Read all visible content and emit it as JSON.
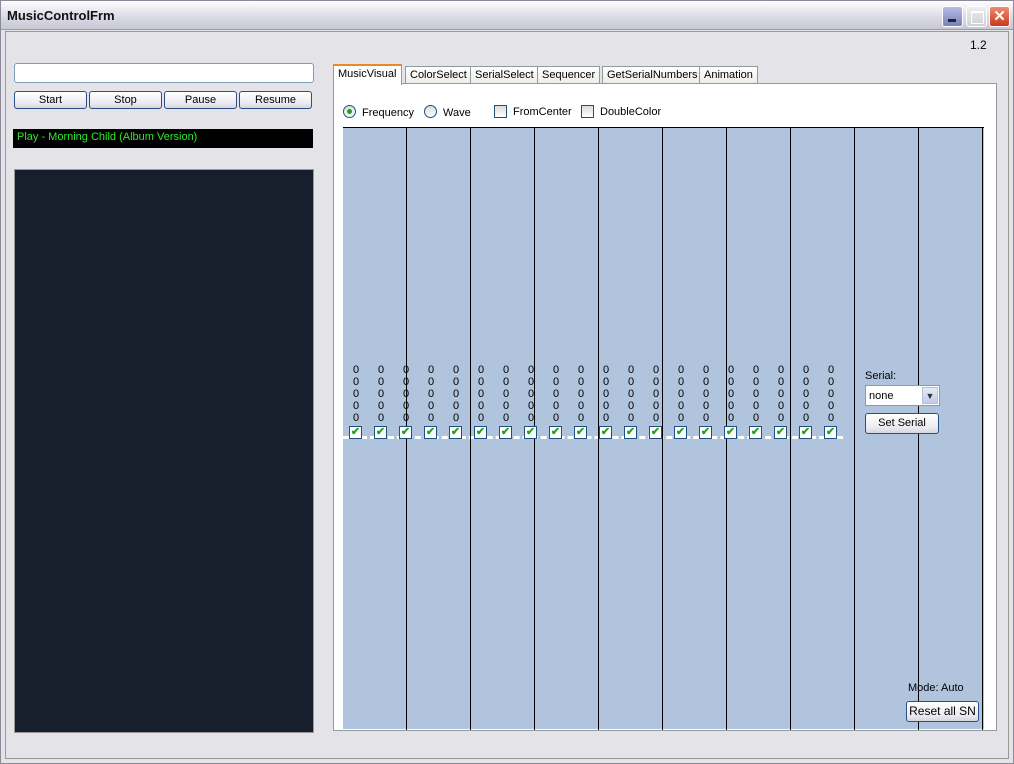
{
  "window": {
    "title": "MusicControlFrm",
    "version": "1.2"
  },
  "controls": {
    "file_input": "",
    "start": "Start",
    "stop": "Stop",
    "pause": "Pause",
    "resume": "Resume",
    "now_playing": "Play - Morning Child (Album Version)"
  },
  "tabs": [
    "MusicVisual",
    "ColorSelect",
    "SerialSelect",
    "Sequencer",
    "GetSerialNumbers",
    "Animation"
  ],
  "active_tab": "MusicVisual",
  "options": {
    "frequency": "Frequency",
    "wave": "Wave",
    "from_center": "FromCenter",
    "double_color": "DoubleColor",
    "selected_mode": "Frequency",
    "from_center_checked": false,
    "double_color_checked": false
  },
  "channels": [
    {
      "values": [
        0,
        0,
        0,
        0,
        0
      ],
      "checked": true
    },
    {
      "values": [
        0,
        0,
        0,
        0,
        0
      ],
      "checked": true
    },
    {
      "values": [
        0,
        0,
        0,
        0,
        0
      ],
      "checked": true
    },
    {
      "values": [
        0,
        0,
        0,
        0,
        0
      ],
      "checked": true
    },
    {
      "values": [
        0,
        0,
        0,
        0,
        0
      ],
      "checked": true
    },
    {
      "values": [
        0,
        0,
        0,
        0,
        0
      ],
      "checked": true
    },
    {
      "values": [
        0,
        0,
        0,
        0,
        0
      ],
      "checked": true
    },
    {
      "values": [
        0,
        0,
        0,
        0,
        0
      ],
      "checked": true
    },
    {
      "values": [
        0,
        0,
        0,
        0,
        0
      ],
      "checked": true
    },
    {
      "values": [
        0,
        0,
        0,
        0,
        0
      ],
      "checked": true
    },
    {
      "values": [
        0,
        0,
        0,
        0,
        0
      ],
      "checked": true
    },
    {
      "values": [
        0,
        0,
        0,
        0,
        0
      ],
      "checked": true
    },
    {
      "values": [
        0,
        0,
        0,
        0,
        0
      ],
      "checked": true
    },
    {
      "values": [
        0,
        0,
        0,
        0,
        0
      ],
      "checked": true
    },
    {
      "values": [
        0,
        0,
        0,
        0,
        0
      ],
      "checked": true
    },
    {
      "values": [
        0,
        0,
        0,
        0,
        0
      ],
      "checked": true
    },
    {
      "values": [
        0,
        0,
        0,
        0,
        0
      ],
      "checked": true
    },
    {
      "values": [
        0,
        0,
        0,
        0,
        0
      ],
      "checked": true
    },
    {
      "values": [
        0,
        0,
        0,
        0,
        0
      ],
      "checked": true
    },
    {
      "values": [
        0,
        0,
        0,
        0,
        0
      ],
      "checked": true
    }
  ],
  "serial": {
    "label": "Serial:",
    "value": "none",
    "set_button": "Set Serial"
  },
  "mode": {
    "label": "Mode: Auto",
    "reset_button": "Reset all SN"
  },
  "colors": {
    "visual_bg": "#b0c4de",
    "now_playing_text": "#2ee82e",
    "tab_accent": "#e68b2c"
  }
}
